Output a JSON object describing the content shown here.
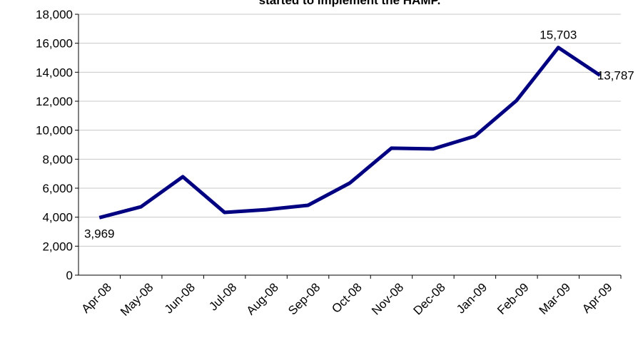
{
  "chart_data": {
    "type": "line",
    "title": "started to implement the HAMP.",
    "categories": [
      "Apr-08",
      "May-08",
      "Jun-08",
      "Jul-08",
      "Aug-08",
      "Sep-08",
      "Oct-08",
      "Nov-08",
      "Dec-08",
      "Jan-09",
      "Feb-09",
      "Mar-09",
      "Apr-09"
    ],
    "values": [
      3969,
      4720,
      6790,
      4330,
      4520,
      4820,
      6350,
      8760,
      8710,
      9590,
      12050,
      15703,
      13787
    ],
    "value_labels": [
      "3,969",
      null,
      null,
      null,
      null,
      null,
      null,
      null,
      null,
      null,
      null,
      "15,703",
      "13,787"
    ],
    "color": "#000080",
    "ylim": [
      0,
      18000
    ],
    "yticks": [
      0,
      {
        "value": 2000,
        "label": "2,000"
      },
      {
        "value": 4000,
        "label": "4,000"
      },
      {
        "value": 6000,
        "label": "6,000"
      },
      {
        "value": 8000,
        "label": "8,000"
      },
      {
        "value": 10000,
        "label": "10,000"
      },
      {
        "value": 12000,
        "label": "12,000"
      },
      {
        "value": 14000,
        "label": "14,000"
      },
      {
        "value": 16000,
        "label": "16,000"
      },
      {
        "value": 18000,
        "label": "18,000"
      }
    ],
    "grid": true
  }
}
